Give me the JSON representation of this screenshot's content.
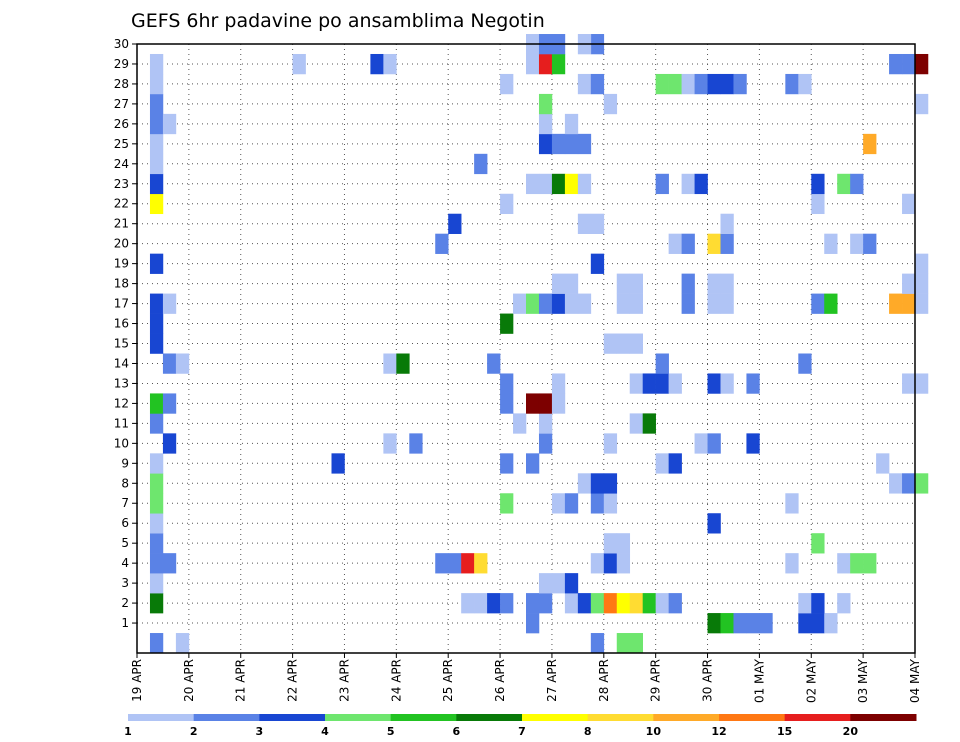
{
  "chart_data": {
    "type": "heatmap",
    "title": "GEFS 6hr padavine po ansamblima Negotin",
    "xlabel": "",
    "ylabel": "",
    "x_ticks": [
      "19 APR",
      "20 APR",
      "21 APR",
      "22 APR",
      "23 APR",
      "24 APR",
      "25 APR",
      "26 APR",
      "27 APR",
      "28 APR",
      "29 APR",
      "30 APR",
      "01 MAY",
      "02 MAY",
      "03 MAY",
      "04 MAY"
    ],
    "x_range_days": [
      0,
      15
    ],
    "y_ticks": [
      1,
      2,
      3,
      4,
      5,
      6,
      7,
      8,
      9,
      10,
      11,
      12,
      13,
      14,
      15,
      16,
      17,
      18,
      19,
      20,
      21,
      22,
      23,
      24,
      25,
      26,
      27,
      28,
      29,
      30
    ],
    "y_range": [
      0,
      30
    ],
    "grid": true,
    "colorbar": {
      "labels": [
        "1",
        "2",
        "3",
        "4",
        "5",
        "6",
        "7",
        "8",
        "10",
        "12",
        "15",
        "20"
      ],
      "colors": [
        "#b0c4f5",
        "#5a82e6",
        "#1846d2",
        "#6ee66e",
        "#22c322",
        "#087a08",
        "#ffff00",
        "#ffdc32",
        "#ffaa28",
        "#ff7814",
        "#e61e1e",
        "#7d0000"
      ]
    },
    "cells": [
      {
        "m": 0,
        "d": 0.25,
        "v": 2
      },
      {
        "m": 0,
        "d": 0.75,
        "v": 1
      },
      {
        "m": 0,
        "d": 8.75,
        "v": 2
      },
      {
        "m": 0,
        "d": 9.25,
        "v": 4
      },
      {
        "m": 0,
        "d": 9.5,
        "v": 4
      },
      {
        "m": 1,
        "d": 7.5,
        "v": 2
      },
      {
        "m": 1,
        "d": 11.0,
        "v": 6
      },
      {
        "m": 1,
        "d": 11.25,
        "v": 5
      },
      {
        "m": 1,
        "d": 11.5,
        "v": 2
      },
      {
        "m": 1,
        "d": 11.75,
        "v": 2
      },
      {
        "m": 1,
        "d": 12.0,
        "v": 2
      },
      {
        "m": 1,
        "d": 12.75,
        "v": 3
      },
      {
        "m": 1,
        "d": 13.0,
        "v": 3
      },
      {
        "m": 1,
        "d": 13.25,
        "v": 1
      },
      {
        "m": 2,
        "d": 0.25,
        "v": 6
      },
      {
        "m": 2,
        "d": 6.25,
        "v": 1
      },
      {
        "m": 2,
        "d": 6.5,
        "v": 1
      },
      {
        "m": 2,
        "d": 6.75,
        "v": 3
      },
      {
        "m": 2,
        "d": 7.0,
        "v": 2
      },
      {
        "m": 2,
        "d": 7.5,
        "v": 2
      },
      {
        "m": 2,
        "d": 7.75,
        "v": 2
      },
      {
        "m": 2,
        "d": 8.25,
        "v": 1
      },
      {
        "m": 2,
        "d": 8.5,
        "v": 3
      },
      {
        "m": 2,
        "d": 8.75,
        "v": 4
      },
      {
        "m": 2,
        "d": 9.0,
        "v": 12
      },
      {
        "m": 2,
        "d": 9.25,
        "v": 7
      },
      {
        "m": 2,
        "d": 9.5,
        "v": 8
      },
      {
        "m": 2,
        "d": 9.75,
        "v": 5
      },
      {
        "m": 2,
        "d": 10.0,
        "v": 1
      },
      {
        "m": 2,
        "d": 10.25,
        "v": 2
      },
      {
        "m": 2,
        "d": 12.75,
        "v": 1
      },
      {
        "m": 2,
        "d": 13.0,
        "v": 3
      },
      {
        "m": 2,
        "d": 13.5,
        "v": 1
      },
      {
        "m": 3,
        "d": 0.25,
        "v": 1
      },
      {
        "m": 3,
        "d": 7.75,
        "v": 1
      },
      {
        "m": 3,
        "d": 8.0,
        "v": 1
      },
      {
        "m": 3,
        "d": 8.25,
        "v": 3
      },
      {
        "m": 4,
        "d": 0.25,
        "v": 2
      },
      {
        "m": 4,
        "d": 0.5,
        "v": 2
      },
      {
        "m": 4,
        "d": 5.75,
        "v": 2
      },
      {
        "m": 4,
        "d": 6.0,
        "v": 2
      },
      {
        "m": 4,
        "d": 6.25,
        "v": 15
      },
      {
        "m": 4,
        "d": 6.5,
        "v": 8
      },
      {
        "m": 4,
        "d": 8.75,
        "v": 1
      },
      {
        "m": 4,
        "d": 9.0,
        "v": 3
      },
      {
        "m": 4,
        "d": 9.25,
        "v": 1
      },
      {
        "m": 4,
        "d": 12.5,
        "v": 1
      },
      {
        "m": 4,
        "d": 13.5,
        "v": 1
      },
      {
        "m": 4,
        "d": 13.75,
        "v": 4
      },
      {
        "m": 4,
        "d": 14.0,
        "v": 4
      },
      {
        "m": 5,
        "d": 0.25,
        "v": 2
      },
      {
        "m": 5,
        "d": 9.0,
        "v": 1
      },
      {
        "m": 5,
        "d": 9.25,
        "v": 1
      },
      {
        "m": 5,
        "d": 13.0,
        "v": 4
      },
      {
        "m": 6,
        "d": 0.25,
        "v": 1
      },
      {
        "m": 6,
        "d": 11.0,
        "v": 3
      },
      {
        "m": 7,
        "d": 0.25,
        "v": 4
      },
      {
        "m": 7,
        "d": 7.0,
        "v": 4
      },
      {
        "m": 7,
        "d": 8.0,
        "v": 1
      },
      {
        "m": 7,
        "d": 8.25,
        "v": 2
      },
      {
        "m": 7,
        "d": 8.75,
        "v": 2
      },
      {
        "m": 7,
        "d": 9.0,
        "v": 1
      },
      {
        "m": 7,
        "d": 12.5,
        "v": 1
      },
      {
        "m": 8,
        "d": 0.25,
        "v": 4
      },
      {
        "m": 8,
        "d": 8.5,
        "v": 1
      },
      {
        "m": 8,
        "d": 8.75,
        "v": 3
      },
      {
        "m": 8,
        "d": 9.0,
        "v": 3
      },
      {
        "m": 8,
        "d": 14.5,
        "v": 1
      },
      {
        "m": 8,
        "d": 14.75,
        "v": 2
      },
      {
        "m": 8,
        "d": 15.0,
        "v": 4
      },
      {
        "m": 9,
        "d": 0.25,
        "v": 1
      },
      {
        "m": 9,
        "d": 3.75,
        "v": 3
      },
      {
        "m": 9,
        "d": 7.0,
        "v": 2
      },
      {
        "m": 9,
        "d": 7.5,
        "v": 2
      },
      {
        "m": 9,
        "d": 10.0,
        "v": 1
      },
      {
        "m": 9,
        "d": 10.25,
        "v": 3
      },
      {
        "m": 9,
        "d": 14.25,
        "v": 1
      },
      {
        "m": 10,
        "d": 0.5,
        "v": 3
      },
      {
        "m": 10,
        "d": 4.75,
        "v": 1
      },
      {
        "m": 10,
        "d": 5.25,
        "v": 2
      },
      {
        "m": 10,
        "d": 7.75,
        "v": 2
      },
      {
        "m": 10,
        "d": 9.0,
        "v": 1
      },
      {
        "m": 10,
        "d": 10.75,
        "v": 1
      },
      {
        "m": 10,
        "d": 11.0,
        "v": 2
      },
      {
        "m": 10,
        "d": 11.75,
        "v": 3
      },
      {
        "m": 11,
        "d": 0.25,
        "v": 2
      },
      {
        "m": 11,
        "d": 7.25,
        "v": 1
      },
      {
        "m": 11,
        "d": 7.75,
        "v": 1
      },
      {
        "m": 11,
        "d": 9.5,
        "v": 1
      },
      {
        "m": 11,
        "d": 9.75,
        "v": 6
      },
      {
        "m": 12,
        "d": 0.25,
        "v": 5
      },
      {
        "m": 12,
        "d": 0.5,
        "v": 2
      },
      {
        "m": 12,
        "d": 7.0,
        "v": 2
      },
      {
        "m": 12,
        "d": 7.5,
        "v": 20
      },
      {
        "m": 12,
        "d": 7.75,
        "v": 20
      },
      {
        "m": 12,
        "d": 8.0,
        "v": 1
      },
      {
        "m": 13,
        "d": 7.0,
        "v": 2
      },
      {
        "m": 13,
        "d": 8.0,
        "v": 1
      },
      {
        "m": 13,
        "d": 9.5,
        "v": 1
      },
      {
        "m": 13,
        "d": 9.75,
        "v": 3
      },
      {
        "m": 13,
        "d": 10.0,
        "v": 3
      },
      {
        "m": 13,
        "d": 10.25,
        "v": 1
      },
      {
        "m": 13,
        "d": 11.0,
        "v": 3
      },
      {
        "m": 13,
        "d": 11.25,
        "v": 1
      },
      {
        "m": 13,
        "d": 11.75,
        "v": 2
      },
      {
        "m": 13,
        "d": 14.75,
        "v": 1
      },
      {
        "m": 13,
        "d": 15.0,
        "v": 1
      },
      {
        "m": 14,
        "d": 0.5,
        "v": 2
      },
      {
        "m": 14,
        "d": 0.75,
        "v": 1
      },
      {
        "m": 14,
        "d": 4.75,
        "v": 1
      },
      {
        "m": 14,
        "d": 5.0,
        "v": 6
      },
      {
        "m": 14,
        "d": 6.75,
        "v": 2
      },
      {
        "m": 14,
        "d": 10.0,
        "v": 2
      },
      {
        "m": 14,
        "d": 12.75,
        "v": 2
      },
      {
        "m": 15,
        "d": 0.25,
        "v": 3
      },
      {
        "m": 15,
        "d": 9.0,
        "v": 1
      },
      {
        "m": 15,
        "d": 9.25,
        "v": 1
      },
      {
        "m": 15,
        "d": 9.5,
        "v": 1
      },
      {
        "m": 16,
        "d": 0.25,
        "v": 3
      },
      {
        "m": 16,
        "d": 7.0,
        "v": 6
      },
      {
        "m": 17,
        "d": 0.25,
        "v": 3
      },
      {
        "m": 17,
        "d": 0.5,
        "v": 1
      },
      {
        "m": 17,
        "d": 7.25,
        "v": 1
      },
      {
        "m": 17,
        "d": 7.5,
        "v": 4
      },
      {
        "m": 17,
        "d": 7.75,
        "v": 2
      },
      {
        "m": 17,
        "d": 8.0,
        "v": 3
      },
      {
        "m": 17,
        "d": 8.25,
        "v": 1
      },
      {
        "m": 17,
        "d": 8.5,
        "v": 1
      },
      {
        "m": 17,
        "d": 9.25,
        "v": 1
      },
      {
        "m": 17,
        "d": 9.5,
        "v": 1
      },
      {
        "m": 17,
        "d": 10.5,
        "v": 2
      },
      {
        "m": 17,
        "d": 11.0,
        "v": 1
      },
      {
        "m": 17,
        "d": 11.25,
        "v": 1
      },
      {
        "m": 17,
        "d": 13.0,
        "v": 2
      },
      {
        "m": 17,
        "d": 13.25,
        "v": 5
      },
      {
        "m": 17,
        "d": 14.5,
        "v": 10
      },
      {
        "m": 17,
        "d": 14.75,
        "v": 10
      },
      {
        "m": 17,
        "d": 15.0,
        "v": 1
      },
      {
        "m": 18,
        "d": 8.0,
        "v": 1
      },
      {
        "m": 18,
        "d": 8.25,
        "v": 1
      },
      {
        "m": 18,
        "d": 9.25,
        "v": 1
      },
      {
        "m": 18,
        "d": 9.5,
        "v": 1
      },
      {
        "m": 18,
        "d": 10.5,
        "v": 2
      },
      {
        "m": 18,
        "d": 11.0,
        "v": 1
      },
      {
        "m": 18,
        "d": 11.25,
        "v": 1
      },
      {
        "m": 18,
        "d": 14.75,
        "v": 1
      },
      {
        "m": 18,
        "d": 15.0,
        "v": 1
      },
      {
        "m": 19,
        "d": 0.25,
        "v": 3
      },
      {
        "m": 19,
        "d": 8.75,
        "v": 3
      },
      {
        "m": 19,
        "d": 15.0,
        "v": 1
      },
      {
        "m": 20,
        "d": 5.75,
        "v": 2
      },
      {
        "m": 20,
        "d": 10.25,
        "v": 1
      },
      {
        "m": 20,
        "d": 10.5,
        "v": 2
      },
      {
        "m": 20,
        "d": 11.0,
        "v": 8
      },
      {
        "m": 20,
        "d": 11.25,
        "v": 2
      },
      {
        "m": 20,
        "d": 13.25,
        "v": 1
      },
      {
        "m": 20,
        "d": 13.75,
        "v": 1
      },
      {
        "m": 20,
        "d": 14.0,
        "v": 2
      },
      {
        "m": 21,
        "d": 6.0,
        "v": 3
      },
      {
        "m": 21,
        "d": 8.5,
        "v": 1
      },
      {
        "m": 21,
        "d": 8.75,
        "v": 1
      },
      {
        "m": 21,
        "d": 11.25,
        "v": 1
      },
      {
        "m": 22,
        "d": 0.25,
        "v": 7
      },
      {
        "m": 22,
        "d": 7.0,
        "v": 1
      },
      {
        "m": 22,
        "d": 13.0,
        "v": 1
      },
      {
        "m": 22,
        "d": 14.75,
        "v": 1
      },
      {
        "m": 23,
        "d": 0.25,
        "v": 3
      },
      {
        "m": 23,
        "d": 7.5,
        "v": 1
      },
      {
        "m": 23,
        "d": 7.75,
        "v": 1
      },
      {
        "m": 23,
        "d": 8.0,
        "v": 6
      },
      {
        "m": 23,
        "d": 8.25,
        "v": 7
      },
      {
        "m": 23,
        "d": 8.5,
        "v": 1
      },
      {
        "m": 23,
        "d": 10.0,
        "v": 2
      },
      {
        "m": 23,
        "d": 10.5,
        "v": 1
      },
      {
        "m": 23,
        "d": 10.75,
        "v": 3
      },
      {
        "m": 23,
        "d": 13.0,
        "v": 3
      },
      {
        "m": 23,
        "d": 13.5,
        "v": 4
      },
      {
        "m": 23,
        "d": 13.75,
        "v": 2
      },
      {
        "m": 24,
        "d": 0.25,
        "v": 1
      },
      {
        "m": 24,
        "d": 6.5,
        "v": 2
      },
      {
        "m": 25,
        "d": 0.25,
        "v": 1
      },
      {
        "m": 25,
        "d": 7.75,
        "v": 3
      },
      {
        "m": 25,
        "d": 8.0,
        "v": 2
      },
      {
        "m": 25,
        "d": 8.25,
        "v": 2
      },
      {
        "m": 25,
        "d": 8.5,
        "v": 2
      },
      {
        "m": 25,
        "d": 14.0,
        "v": 10
      },
      {
        "m": 26,
        "d": 0.25,
        "v": 2
      },
      {
        "m": 26,
        "d": 0.5,
        "v": 1
      },
      {
        "m": 26,
        "d": 7.75,
        "v": 1
      },
      {
        "m": 26,
        "d": 8.25,
        "v": 1
      },
      {
        "m": 27,
        "d": 0.25,
        "v": 2
      },
      {
        "m": 27,
        "d": 7.75,
        "v": 4
      },
      {
        "m": 27,
        "d": 9.0,
        "v": 1
      },
      {
        "m": 27,
        "d": 15.0,
        "v": 1
      },
      {
        "m": 28,
        "d": 0.25,
        "v": 1
      },
      {
        "m": 28,
        "d": 7.0,
        "v": 1
      },
      {
        "m": 28,
        "d": 8.5,
        "v": 1
      },
      {
        "m": 28,
        "d": 8.75,
        "v": 2
      },
      {
        "m": 28,
        "d": 10.0,
        "v": 4
      },
      {
        "m": 28,
        "d": 10.25,
        "v": 4
      },
      {
        "m": 28,
        "d": 10.5,
        "v": 1
      },
      {
        "m": 28,
        "d": 10.75,
        "v": 2
      },
      {
        "m": 28,
        "d": 11.0,
        "v": 3
      },
      {
        "m": 28,
        "d": 11.25,
        "v": 3
      },
      {
        "m": 28,
        "d": 11.5,
        "v": 2
      },
      {
        "m": 28,
        "d": 12.5,
        "v": 2
      },
      {
        "m": 28,
        "d": 12.75,
        "v": 1
      },
      {
        "m": 29,
        "d": 0.25,
        "v": 1
      },
      {
        "m": 29,
        "d": 3.0,
        "v": 1
      },
      {
        "m": 29,
        "d": 4.5,
        "v": 3
      },
      {
        "m": 29,
        "d": 4.75,
        "v": 1
      },
      {
        "m": 29,
        "d": 7.5,
        "v": 1
      },
      {
        "m": 29,
        "d": 7.75,
        "v": 15
      },
      {
        "m": 29,
        "d": 8.0,
        "v": 5
      },
      {
        "m": 29,
        "d": 14.5,
        "v": 2
      },
      {
        "m": 29,
        "d": 14.75,
        "v": 2
      },
      {
        "m": 29,
        "d": 15.0,
        "v": 20
      },
      {
        "m": 30,
        "d": 7.5,
        "v": 1
      },
      {
        "m": 30,
        "d": 7.75,
        "v": 2
      },
      {
        "m": 30,
        "d": 8.0,
        "v": 2
      },
      {
        "m": 30,
        "d": 8.75,
        "v": 2
      },
      {
        "m": 30,
        "d": 8.5,
        "v": 1
      }
    ]
  }
}
